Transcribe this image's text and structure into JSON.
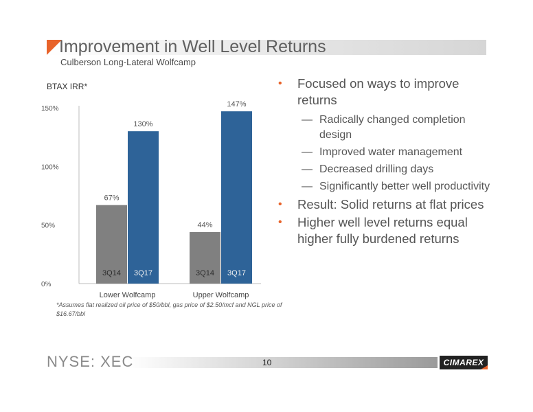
{
  "header": {
    "title": "Improvement in Well Level Returns",
    "subtitle": "Culberson Long-Lateral Wolfcamp"
  },
  "chart": {
    "label": "BTAX IRR*",
    "footnote": "*Assumes flat realized oil price of $50/bbl, gas price of $2.50/mcf and NGL price of $16.67/bbl"
  },
  "chart_data": {
    "type": "bar",
    "categories": [
      "Lower Wolfcamp",
      "Upper Wolfcamp"
    ],
    "series": [
      {
        "name": "3Q14",
        "values": [
          67,
          44
        ],
        "labels": [
          "67%",
          "44%"
        ]
      },
      {
        "name": "3Q17",
        "values": [
          130,
          147
        ],
        "labels": [
          "130%",
          "147%"
        ]
      }
    ],
    "yticks": [
      "0%",
      "50%",
      "100%",
      "150%"
    ],
    "ylim": [
      0,
      150
    ],
    "colors": {
      "3Q14": "#808080",
      "3Q17": "#2e6398"
    }
  },
  "bullets": [
    {
      "text": "Focused on ways to improve returns",
      "sub": [
        "Radically changed completion design",
        "Improved water management",
        "Decreased drilling days",
        "Significantly better well productivity"
      ]
    },
    {
      "text": "Result:  Solid returns at flat prices",
      "sub": []
    },
    {
      "text": "Higher well level returns equal higher fully burdened returns",
      "sub": []
    }
  ],
  "footer": {
    "ticker": "NYSE: XEC",
    "page": "10",
    "logo": "CIMAREX"
  },
  "symbols": {
    "bullet": "•",
    "dash": "—"
  },
  "colors": {
    "accent": "#e8632a",
    "title": "#5f5f5f"
  }
}
